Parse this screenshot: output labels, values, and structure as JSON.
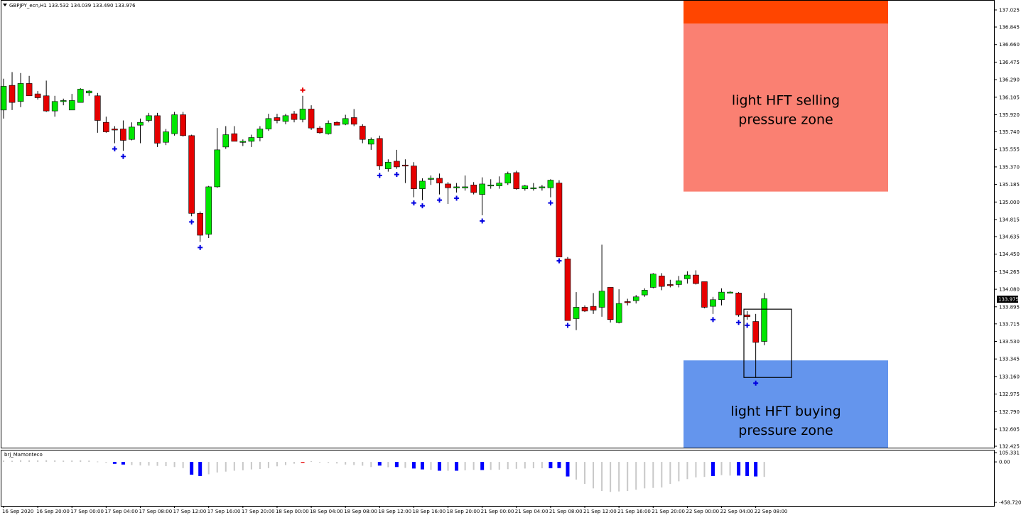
{
  "symbol_header": "GBPJPY_ecn,H1  133.532 134.039 133.490 133.976",
  "indicator_label": "brj_Mamonteco",
  "current_price_label": "133.975",
  "colors": {
    "bull": "#00e600",
    "bear": "#e60000",
    "marker_low": "#0000e0",
    "marker_high": "#e60000",
    "sell_zone": "#fa8072",
    "sell_zone_top": "#ff4500",
    "buy_zone": "#6495ed",
    "hist_grey": "#c8c8c8",
    "hist_blue": "#0000ff"
  },
  "zones": {
    "sell": {
      "line1": "light HFT selling",
      "line2": "pressure zone",
      "top_band": [
        137.07,
        136.88
      ],
      "range": [
        136.88,
        135.11
      ]
    },
    "buy": {
      "line1": "light HFT buying",
      "line2": "pressure zone",
      "range": [
        133.33,
        132.42
      ]
    },
    "box": [
      133.87,
      133.15
    ]
  },
  "chart_data": {
    "type": "candlestick",
    "title": "GBPJPY_ecn,H1  133.532 134.039 133.490 133.976",
    "xlabel": "",
    "ylabel": "",
    "ylim": [
      132.425,
      137.07
    ],
    "yticks": [
      "137.025",
      "136.845",
      "136.660",
      "136.475",
      "136.290",
      "136.105",
      "135.920",
      "135.740",
      "135.555",
      "135.370",
      "135.185",
      "135.000",
      "134.815",
      "134.635",
      "134.450",
      "134.265",
      "134.080",
      "133.895",
      "133.715",
      "133.530",
      "133.345",
      "133.160",
      "132.975",
      "132.790",
      "132.605",
      "132.425"
    ],
    "xticks": [
      "16 Sep 2020",
      "16 Sep 20:00",
      "17 Sep 00:00",
      "17 Sep 04:00",
      "17 Sep 08:00",
      "17 Sep 12:00",
      "17 Sep 16:00",
      "17 Sep 20:00",
      "18 Sep 00:00",
      "18 Sep 04:00",
      "18 Sep 08:00",
      "18 Sep 12:00",
      "18 Sep 16:00",
      "18 Sep 20:00",
      "21 Sep 00:00",
      "21 Sep 04:00",
      "21 Sep 08:00",
      "21 Sep 12:00",
      "21 Sep 16:00",
      "21 Sep 20:00",
      "22 Sep 00:00",
      "22 Sep 04:00",
      "22 Sep 08:00"
    ],
    "candles": [
      [
        135.97,
        136.3,
        135.88,
        136.22
      ],
      [
        136.23,
        136.37,
        135.97,
        136.05
      ],
      [
        136.06,
        136.36,
        136.0,
        136.25
      ],
      [
        136.25,
        136.33,
        136.12,
        136.12
      ],
      [
        136.14,
        136.17,
        136.08,
        136.1
      ],
      [
        136.12,
        136.28,
        135.95,
        135.96
      ],
      [
        135.96,
        136.12,
        135.9,
        136.06
      ],
      [
        136.06,
        136.09,
        136.02,
        136.07
      ],
      [
        135.97,
        136.14,
        135.97,
        136.07
      ],
      [
        136.05,
        136.2,
        136.05,
        136.19
      ],
      [
        136.15,
        136.18,
        136.12,
        136.17
      ],
      [
        136.12,
        136.15,
        135.73,
        135.86
      ],
      [
        135.84,
        135.9,
        135.73,
        135.74
      ],
      [
        135.77,
        135.8,
        135.62,
        135.76
      ],
      [
        135.77,
        135.86,
        135.54,
        135.65
      ],
      [
        135.66,
        135.84,
        135.65,
        135.79
      ],
      [
        135.81,
        135.88,
        135.62,
        135.84
      ],
      [
        135.86,
        135.94,
        135.84,
        135.91
      ],
      [
        135.91,
        135.94,
        135.58,
        135.62
      ],
      [
        135.63,
        135.77,
        135.6,
        135.74
      ],
      [
        135.72,
        135.95,
        135.7,
        135.92
      ],
      [
        135.92,
        135.95,
        135.69,
        135.7
      ],
      [
        135.7,
        135.71,
        134.85,
        134.88
      ],
      [
        134.88,
        134.9,
        134.58,
        134.65
      ],
      [
        134.66,
        135.17,
        134.62,
        135.16
      ],
      [
        135.16,
        135.78,
        135.15,
        135.55
      ],
      [
        135.58,
        135.8,
        135.56,
        135.71
      ],
      [
        135.72,
        135.8,
        135.64,
        135.64
      ],
      [
        135.63,
        135.66,
        135.59,
        135.64
      ],
      [
        135.64,
        135.71,
        135.58,
        135.68
      ],
      [
        135.68,
        135.8,
        135.64,
        135.77
      ],
      [
        135.77,
        135.93,
        135.75,
        135.88
      ],
      [
        135.89,
        135.93,
        135.83,
        135.86
      ],
      [
        135.85,
        135.93,
        135.82,
        135.91
      ],
      [
        135.93,
        135.96,
        135.84,
        135.87
      ],
      [
        135.87,
        136.12,
        135.84,
        135.98
      ],
      [
        135.98,
        136.02,
        135.76,
        135.78
      ],
      [
        135.78,
        135.8,
        135.72,
        135.73
      ],
      [
        135.72,
        135.86,
        135.71,
        135.83
      ],
      [
        135.84,
        135.85,
        135.82,
        135.81
      ],
      [
        135.82,
        135.92,
        135.81,
        135.88
      ],
      [
        135.89,
        135.98,
        135.8,
        135.82
      ],
      [
        135.8,
        135.82,
        135.62,
        135.66
      ],
      [
        135.61,
        135.68,
        135.55,
        135.66
      ],
      [
        135.67,
        135.7,
        135.34,
        135.38
      ],
      [
        135.35,
        135.45,
        135.32,
        135.42
      ],
      [
        135.43,
        135.55,
        135.35,
        135.37
      ],
      [
        135.39,
        135.45,
        135.2,
        135.38
      ],
      [
        135.38,
        135.42,
        135.05,
        135.14
      ],
      [
        135.14,
        135.25,
        135.02,
        135.22
      ],
      [
        135.24,
        135.28,
        135.18,
        135.25
      ],
      [
        135.25,
        135.3,
        135.08,
        135.2
      ],
      [
        135.19,
        135.21,
        134.98,
        135.15
      ],
      [
        135.15,
        135.2,
        135.1,
        135.16
      ],
      [
        135.15,
        135.28,
        135.12,
        135.16
      ],
      [
        135.18,
        135.21,
        135.08,
        135.1
      ],
      [
        135.08,
        135.26,
        134.86,
        135.19
      ],
      [
        135.17,
        135.24,
        135.14,
        135.18
      ],
      [
        135.17,
        135.27,
        135.14,
        135.2
      ],
      [
        135.2,
        135.32,
        135.18,
        135.3
      ],
      [
        135.31,
        135.33,
        135.13,
        135.14
      ],
      [
        135.14,
        135.18,
        135.12,
        135.17
      ],
      [
        135.15,
        135.2,
        135.12,
        135.15
      ],
      [
        135.15,
        135.18,
        135.12,
        135.16
      ],
      [
        135.15,
        135.24,
        135.05,
        135.23
      ],
      [
        135.2,
        135.23,
        134.44,
        134.42
      ],
      [
        134.4,
        134.42,
        133.76,
        133.75
      ],
      [
        133.77,
        134.05,
        133.65,
        133.89
      ],
      [
        133.89,
        133.91,
        133.84,
        133.85
      ],
      [
        133.9,
        134.04,
        133.82,
        133.86
      ],
      [
        133.89,
        134.55,
        133.79,
        134.06
      ],
      [
        134.1,
        134.1,
        133.73,
        133.76
      ],
      [
        133.73,
        134.08,
        133.72,
        133.93
      ],
      [
        133.95,
        133.98,
        133.91,
        133.94
      ],
      [
        133.96,
        134.02,
        133.93,
        134.0
      ],
      [
        134.02,
        134.09,
        134.0,
        134.07
      ],
      [
        134.1,
        134.25,
        134.09,
        134.24
      ],
      [
        134.22,
        134.25,
        134.07,
        134.11
      ],
      [
        134.13,
        134.18,
        134.1,
        134.12
      ],
      [
        134.13,
        134.22,
        134.1,
        134.17
      ],
      [
        134.19,
        134.27,
        134.14,
        134.23
      ],
      [
        134.23,
        134.28,
        134.13,
        134.14
      ],
      [
        134.16,
        134.16,
        133.88,
        133.89
      ],
      [
        133.9,
        134.0,
        133.82,
        133.97
      ],
      [
        133.97,
        134.09,
        133.91,
        134.05
      ],
      [
        134.05,
        134.06,
        134.04,
        134.05
      ],
      [
        134.04,
        134.05,
        133.79,
        133.81
      ],
      [
        133.81,
        133.85,
        133.76,
        133.79
      ],
      [
        133.74,
        133.82,
        133.15,
        133.52
      ],
      [
        133.53,
        134.04,
        133.49,
        133.98
      ]
    ],
    "markers_low": [
      13,
      14,
      22,
      23,
      44,
      46,
      48,
      49,
      51,
      53,
      56,
      64,
      65,
      66,
      83,
      86,
      87,
      88
    ],
    "markers_high": [
      35
    ],
    "indicator": {
      "name": "brj_Mamonteco",
      "ylim": [
        -458.7,
        105.331
      ],
      "yticks": [
        "105.331",
        "0.00",
        "-458.720"
      ],
      "values": [
        15,
        13,
        20,
        18,
        18,
        20,
        18,
        15,
        16,
        18,
        15,
        5,
        -10,
        -22,
        -30,
        -35,
        -40,
        -42,
        -45,
        -48,
        -58,
        -70,
        -145,
        -160,
        -140,
        -120,
        -110,
        -100,
        -95,
        -85,
        -80,
        -70,
        -50,
        -35,
        -20,
        -10,
        8,
        -5,
        -10,
        -18,
        -30,
        -35,
        -43,
        -58,
        -42,
        -60,
        -58,
        -68,
        -75,
        -85,
        -90,
        -100,
        -100,
        -100,
        -95,
        -90,
        -92,
        -90,
        -88,
        -82,
        -78,
        -75,
        -72,
        -72,
        -72,
        -70,
        -165,
        -200,
        -250,
        -300,
        -330,
        -340,
        -335,
        -330,
        -315,
        -300,
        -295,
        -290,
        -250,
        -220,
        -195,
        -175,
        -170,
        -160,
        -150,
        -155,
        -155,
        -160,
        -165,
        -170
      ],
      "blue": [
        13,
        14,
        22,
        23,
        44,
        46,
        48,
        49,
        51,
        53,
        56,
        64,
        65,
        66,
        83,
        86,
        87,
        88
      ],
      "red": [
        35
      ]
    }
  }
}
